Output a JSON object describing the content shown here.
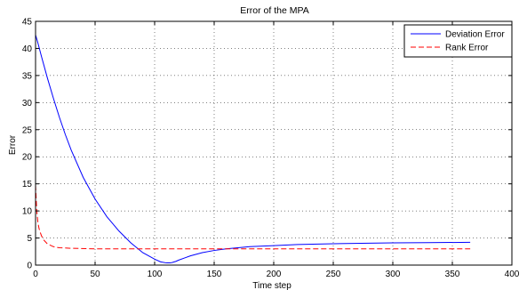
{
  "chart_data": {
    "type": "line",
    "title": "Error of the MPA",
    "xlabel": "Time step",
    "ylabel": "Error",
    "xlim": [
      0,
      400
    ],
    "ylim": [
      0,
      45
    ],
    "xticks": [
      0,
      50,
      100,
      150,
      200,
      250,
      300,
      350,
      400
    ],
    "yticks": [
      0,
      5,
      10,
      15,
      20,
      25,
      30,
      35,
      40,
      45
    ],
    "grid": true,
    "legend_position": "top-right",
    "series": [
      {
        "name": "Deviation Error",
        "color": "#0000ff",
        "style": "solid",
        "x": [
          0,
          2,
          5,
          10,
          15,
          20,
          25,
          30,
          40,
          50,
          60,
          70,
          80,
          90,
          100,
          105,
          110,
          113,
          115,
          118,
          120,
          125,
          130,
          140,
          150,
          160,
          170,
          180,
          200,
          220,
          250,
          280,
          300,
          330,
          365
        ],
        "y": [
          42.5,
          41,
          38.5,
          34.5,
          30.8,
          27.3,
          24.1,
          21.2,
          16.2,
          12.2,
          8.9,
          6.3,
          4.1,
          2.3,
          1.1,
          0.6,
          0.4,
          0.4,
          0.5,
          0.7,
          0.9,
          1.3,
          1.7,
          2.3,
          2.7,
          3.0,
          3.2,
          3.4,
          3.6,
          3.8,
          3.95,
          4.05,
          4.1,
          4.15,
          4.2
        ]
      },
      {
        "name": "Rank Error",
        "color": "#ff0000",
        "style": "dashed",
        "x": [
          0,
          1,
          2,
          3,
          4,
          5,
          7,
          10,
          15,
          20,
          30,
          50,
          80,
          100,
          150,
          200,
          250,
          300,
          365
        ],
        "y": [
          14.8,
          10,
          7.8,
          6.7,
          6.0,
          5.4,
          4.6,
          3.9,
          3.4,
          3.2,
          3.1,
          3.0,
          3.0,
          3.0,
          3.0,
          3.0,
          3.0,
          3.0,
          3.0
        ]
      }
    ]
  }
}
